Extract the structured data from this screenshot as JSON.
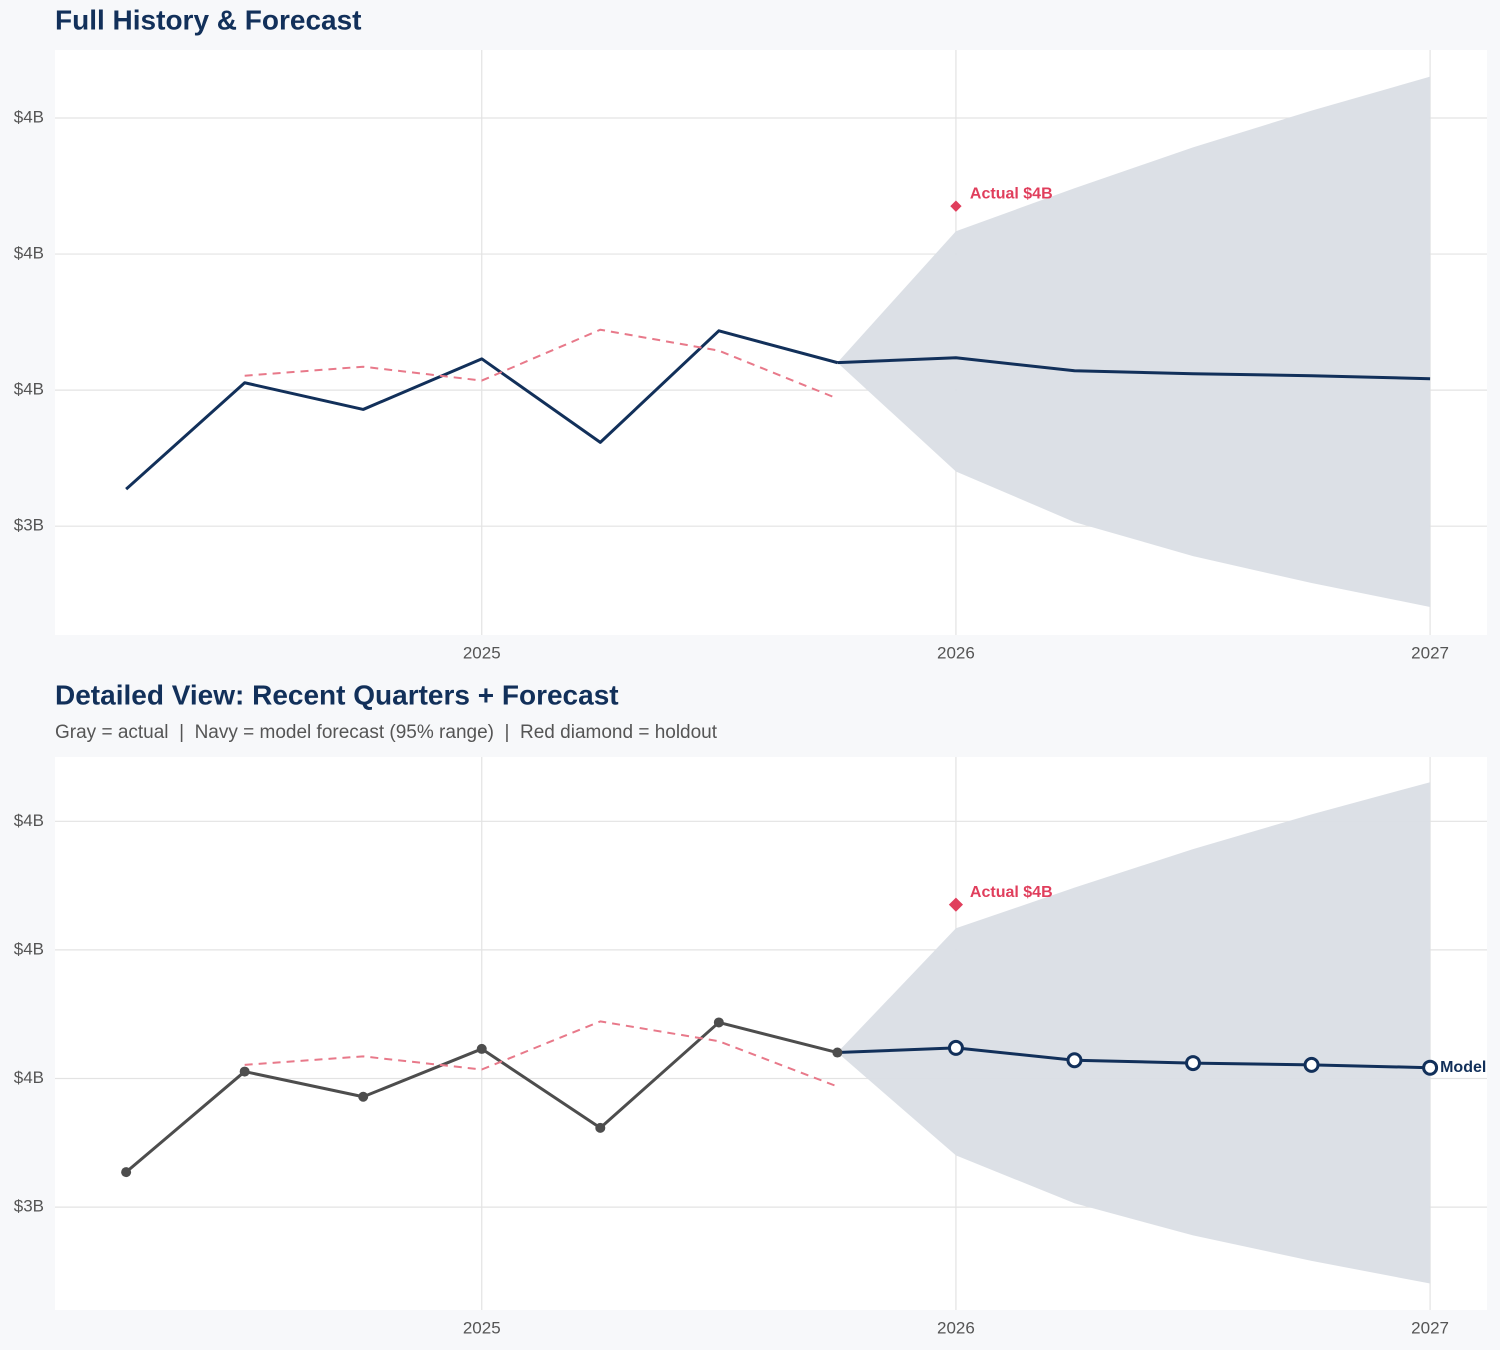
{
  "chart_data": [
    {
      "type": "line",
      "title": "Full History & Forecast",
      "x": [
        2024.25,
        2024.5,
        2024.75,
        2025,
        2025.25,
        2025.5,
        2025.75,
        2026,
        2026.25,
        2026.5,
        2026.75,
        2027
      ],
      "xlim": [
        2024.1,
        2027.12
      ],
      "xticks": [
        2025,
        2026,
        2027
      ],
      "ylim": [
        2.6,
        4.75
      ],
      "yticks": [
        {
          "value": 3,
          "label": "$3B"
        },
        {
          "value": 3.5,
          "label": "$4B"
        },
        {
          "value": 4,
          "label": "$4B"
        },
        {
          "value": 4.5,
          "label": "$4B"
        }
      ],
      "grid": true,
      "band": {
        "color": "#dadee5",
        "lower": [
          null,
          null,
          null,
          null,
          null,
          null,
          3.601,
          3.201,
          3.015,
          2.89,
          2.791,
          2.703
        ],
        "upper": [
          null,
          null,
          null,
          null,
          null,
          null,
          3.601,
          4.084,
          4.242,
          4.392,
          4.527,
          4.652
        ]
      },
      "series": [
        {
          "color": "#12305a",
          "markers": false,
          "values": [
            3.136,
            3.527,
            3.429,
            3.615,
            3.308,
            3.718,
            3.601,
            null,
            null,
            null,
            null,
            null
          ]
        },
        {
          "color": "#e8798a",
          "dashed": true,
          "markers": false,
          "values": [
            null,
            3.553,
            3.586,
            3.535,
            3.722,
            3.645,
            3.469,
            null,
            null,
            null,
            null,
            null
          ]
        },
        {
          "color": "#12305a",
          "markers": false,
          "values": [
            null,
            null,
            null,
            null,
            null,
            null,
            3.601,
            3.619,
            3.571,
            3.56,
            3.553,
            3.542
          ]
        }
      ],
      "holdout": {
        "x": 2026,
        "value": 4.176,
        "label": "Actual $4B",
        "color": "#e03e5c"
      }
    },
    {
      "type": "line",
      "title": "Detailed View: Recent Quarters + Forecast",
      "subtitle": "Gray = actual  |  Navy = model forecast (95% range)  |  Red diamond = holdout",
      "x": [
        2024.25,
        2024.5,
        2024.75,
        2025,
        2025.25,
        2025.5,
        2025.75,
        2026,
        2026.25,
        2026.5,
        2026.75,
        2027
      ],
      "xlim": [
        2024.1,
        2027.12
      ],
      "xticks": [
        2025,
        2026,
        2027
      ],
      "ylim": [
        2.6,
        4.75
      ],
      "yticks": [
        {
          "value": 3,
          "label": "$3B"
        },
        {
          "value": 3.5,
          "label": "$4B"
        },
        {
          "value": 4,
          "label": "$4B"
        },
        {
          "value": 4.5,
          "label": "$4B"
        }
      ],
      "grid": true,
      "band": {
        "color": "#dadee5",
        "lower": [
          null,
          null,
          null,
          null,
          null,
          null,
          3.601,
          3.201,
          3.015,
          2.89,
          2.791,
          2.703
        ],
        "upper": [
          null,
          null,
          null,
          null,
          null,
          null,
          3.601,
          4.084,
          4.242,
          4.392,
          4.527,
          4.652
        ]
      },
      "series": [
        {
          "color": "#4d4d4d",
          "markers": true,
          "values": [
            3.136,
            3.527,
            3.429,
            3.615,
            3.308,
            3.718,
            3.601,
            null,
            null,
            null,
            null,
            null
          ]
        },
        {
          "color": "#e8798a",
          "dashed": true,
          "markers": false,
          "values": [
            null,
            3.553,
            3.586,
            3.535,
            3.722,
            3.645,
            3.469,
            null,
            null,
            null,
            null,
            null
          ]
        },
        {
          "name": "Model",
          "color": "#12305a",
          "markers": true,
          "open_markers": true,
          "values": [
            null,
            null,
            null,
            null,
            null,
            null,
            3.601,
            3.619,
            3.571,
            3.56,
            3.553,
            3.542
          ]
        }
      ],
      "holdout": {
        "x": 2026,
        "value": 4.176,
        "label": "Actual $4B",
        "color": "#e03e5c"
      }
    }
  ]
}
